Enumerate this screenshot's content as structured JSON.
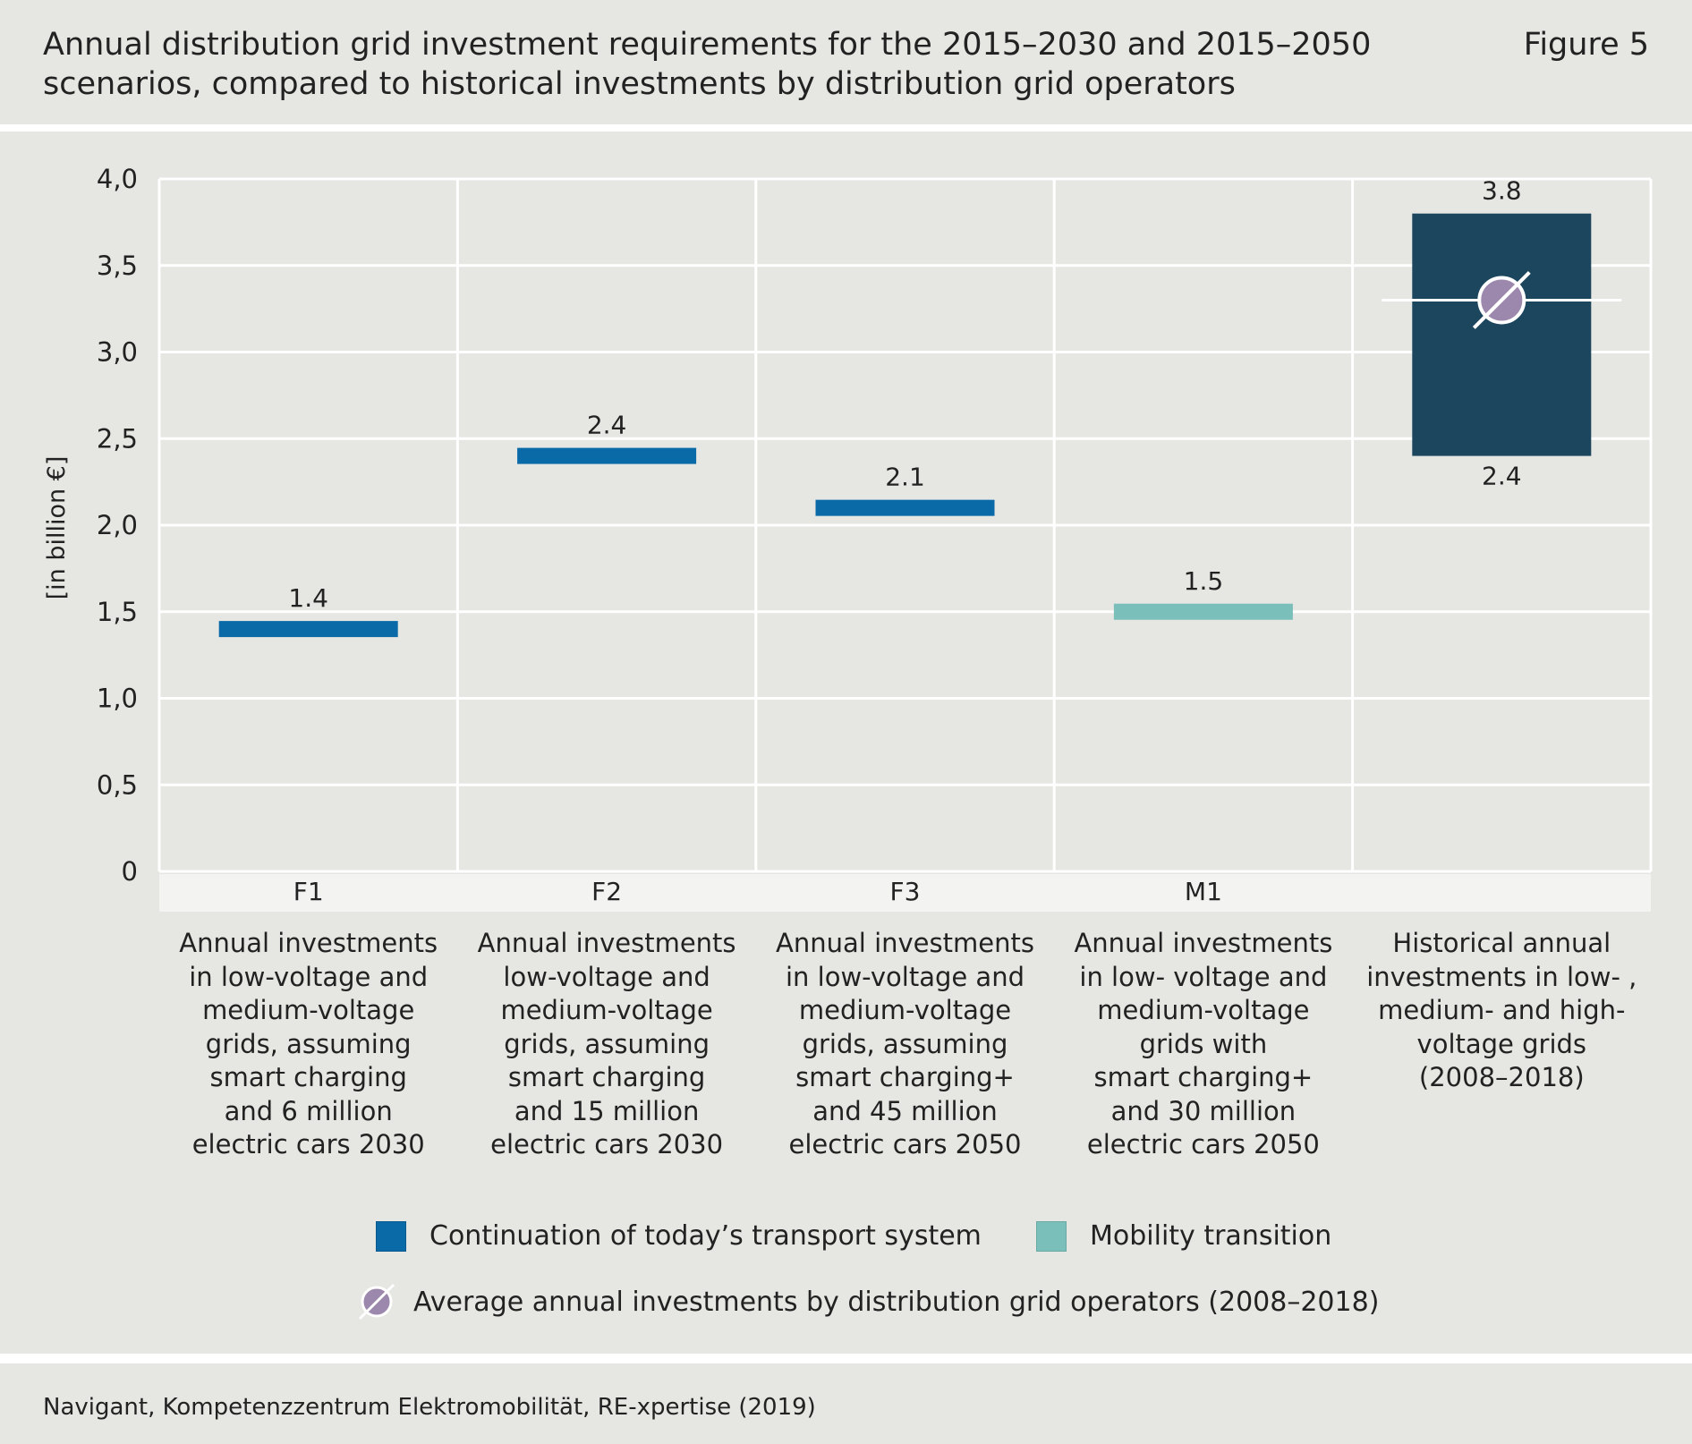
{
  "header": {
    "title_line1": "Annual distribution grid investment requirements for the 2015–2030 and 2015–2050",
    "title_line2": "scenarios, compared to historical investments by distribution grid operators",
    "figure_label": "Figure 5"
  },
  "chart_data": {
    "type": "bar",
    "ylabel": "[in billion €]",
    "ylim": [
      0,
      4.0
    ],
    "yticks": [
      "0",
      "0,5",
      "1,0",
      "1,5",
      "2,0",
      "2,5",
      "3,0",
      "3,5",
      "4,0"
    ],
    "grid": true,
    "categories": [
      "F1",
      "F2",
      "F3",
      "M1",
      ""
    ],
    "category_descriptions": [
      [
        "Annual investments",
        "in low-voltage and",
        "medium-voltage",
        "grids, assuming",
        "smart charging",
        "and 6 million",
        "electric cars 2030"
      ],
      [
        "Annual investments",
        "low-voltage and",
        "medium-voltage",
        "grids, assuming",
        "smart charging",
        "and 15 million",
        "electric cars 2030"
      ],
      [
        "Annual investments",
        "in low-voltage and",
        "medium-voltage",
        "grids, assuming",
        "smart charging+",
        "and 45 million",
        "electric cars 2050"
      ],
      [
        "Annual investments",
        "in low- voltage and",
        "medium-voltage",
        "grids with",
        "smart charging+",
        "and 30 million",
        "electric cars 2050"
      ],
      [
        "Historical annual",
        "investments in low- ,",
        "medium- and high-",
        "voltage grids",
        "(2008–2018)"
      ]
    ],
    "series": [
      {
        "name": "Continuation of today’s transport system",
        "color": "#0a6aa8",
        "points": [
          {
            "category": "F1",
            "value": 1.4,
            "label": "1.4"
          },
          {
            "category": "F2",
            "value": 2.4,
            "label": "2.4"
          },
          {
            "category": "F3",
            "value": 2.1,
            "label": "2.1"
          }
        ]
      },
      {
        "name": "Mobility transition",
        "color": "#7bbfba",
        "points": [
          {
            "category": "M1",
            "value": 1.5,
            "label": "1.5"
          }
        ]
      }
    ],
    "historical_range": {
      "low": 2.4,
      "high": 3.8,
      "low_label": "2.4",
      "high_label": "3.8",
      "color": "#1c455e"
    },
    "average_marker": {
      "name": "Average annual investments by distribution grid operators (2008–2018)",
      "value": 3.3,
      "color": "#9c88ac"
    }
  },
  "legend": {
    "item1": "Continuation of today’s transport system",
    "item2": "Mobility transition",
    "item3": "Average annual investments by distribution grid operators (2008–2018)"
  },
  "footer": {
    "source": "Navigant, Kompetenzzentrum Elektromobilität, RE-xpertise (2019)"
  }
}
